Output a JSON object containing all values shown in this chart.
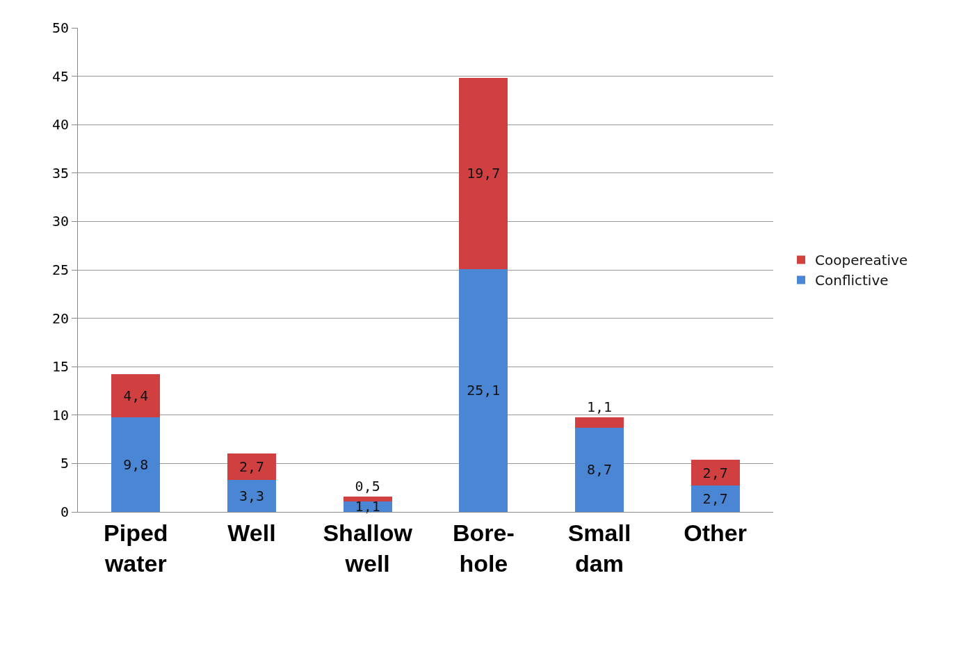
{
  "chart_data": {
    "type": "bar",
    "stacked": true,
    "categories": [
      "Piped water",
      "Well",
      "Shallow well",
      "Bore-hole",
      "Small dam",
      "Other"
    ],
    "series": [
      {
        "name": "Conflictive",
        "color": "#4a86d4",
        "values": [
          9.8,
          3.3,
          1.1,
          25.1,
          8.7,
          2.7
        ],
        "value_labels": [
          "9,8",
          "3,3",
          "1,1",
          "25,1",
          "8,7",
          "2,7"
        ]
      },
      {
        "name": "Coopereative",
        "color": "#d04040",
        "values": [
          4.4,
          2.7,
          0.5,
          19.7,
          1.1,
          2.7
        ],
        "value_labels": [
          "4,4",
          "2,7",
          "0,5",
          "19,7",
          "1,1",
          "2,7"
        ]
      }
    ],
    "ylim": [
      0,
      50
    ],
    "yticks": [
      0,
      5,
      10,
      15,
      20,
      25,
      30,
      35,
      40,
      45,
      50
    ],
    "grid": "y",
    "legend": "right"
  }
}
